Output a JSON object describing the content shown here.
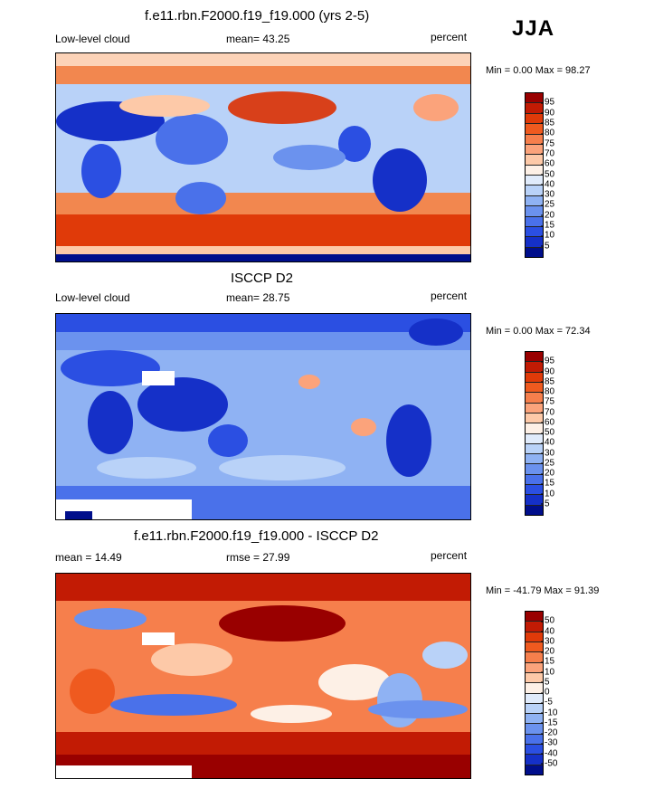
{
  "season": "JJA",
  "panels": [
    {
      "title": "f.e11.rbn.F2000.f19_f19.000 (yrs 2-5)",
      "left_label": "Low-level cloud",
      "center_label": "mean=  43.25",
      "units": "percent",
      "minmax": "Min =   0.00 Max =  98.27"
    },
    {
      "title": "ISCCP D2",
      "left_label": "Low-level cloud",
      "center_label": "mean=  28.75",
      "units": "percent",
      "minmax": "Min =   0.00 Max =  72.34"
    },
    {
      "title": "f.e11.rbn.F2000.f19_f19.000 - ISCCP D2",
      "left_label": "mean =  14.49",
      "center_label": "rmse =  27.99",
      "units": "percent",
      "minmax": "Min = -41.79 Max =  91.39"
    }
  ],
  "chart_data": [
    {
      "type": "heatmap",
      "title": "f.e11.rbn.F2000.f19_f19.000 (yrs 2-5)",
      "variable": "Low-level cloud",
      "units": "percent",
      "mean": 43.25,
      "min": 0.0,
      "max": 98.27,
      "colorbar_levels": [
        "95",
        "90",
        "85",
        "80",
        "75",
        "70",
        "60",
        "50",
        "40",
        "30",
        "25",
        "20",
        "15",
        "10",
        "5"
      ],
      "colorbar_colors": [
        "#990000",
        "#c21b04",
        "#e03a09",
        "#ef5a1f",
        "#f67f4c",
        "#fba37b",
        "#fdc9a8",
        "#fdf0e6",
        "#e0ebfb",
        "#b9d2f8",
        "#8fb2f3",
        "#6b92ee",
        "#4a71ea",
        "#2b4fe2",
        "#1530c8",
        "#000e8b"
      ]
    },
    {
      "type": "heatmap",
      "title": "ISCCP D2",
      "variable": "Low-level cloud",
      "units": "percent",
      "mean": 28.75,
      "min": 0.0,
      "max": 72.34,
      "colorbar_levels": [
        "95",
        "90",
        "85",
        "80",
        "75",
        "70",
        "60",
        "50",
        "40",
        "30",
        "25",
        "20",
        "15",
        "10",
        "5"
      ],
      "colorbar_colors": [
        "#990000",
        "#c21b04",
        "#e03a09",
        "#ef5a1f",
        "#f67f4c",
        "#fba37b",
        "#fdc9a8",
        "#fdf0e6",
        "#e0ebfb",
        "#b9d2f8",
        "#8fb2f3",
        "#6b92ee",
        "#4a71ea",
        "#2b4fe2",
        "#1530c8",
        "#000e8b"
      ]
    },
    {
      "type": "heatmap",
      "title": "f.e11.rbn.F2000.f19_f19.000 - ISCCP D2",
      "units": "percent",
      "mean": 14.49,
      "rmse": 27.99,
      "min": -41.79,
      "max": 91.39,
      "colorbar_levels": [
        "50",
        "40",
        "30",
        "20",
        "15",
        "10",
        "5",
        "0",
        "-5",
        "-10",
        "-15",
        "-20",
        "-30",
        "-40",
        "-50"
      ],
      "colorbar_colors": [
        "#990000",
        "#c21b04",
        "#e03a09",
        "#ef5a1f",
        "#f67f4c",
        "#fba37b",
        "#fdc9a8",
        "#fdf0e6",
        "#e0ebfb",
        "#b9d2f8",
        "#8fb2f3",
        "#6b92ee",
        "#4a71ea",
        "#2b4fe2",
        "#1530c8",
        "#000e8b"
      ]
    }
  ]
}
